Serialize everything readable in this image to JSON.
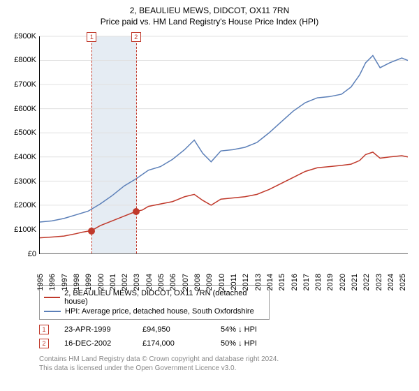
{
  "title_line1": "2, BEAULIEU MEWS, DIDCOT, OX11 7RN",
  "title_line2": "Price paid vs. HM Land Registry's House Price Index (HPI)",
  "chart": {
    "type": "line",
    "x_start_year": 1995,
    "x_end_year": 2025.5,
    "x_ticks": [
      1995,
      1996,
      1997,
      1998,
      1999,
      2000,
      2001,
      2002,
      2003,
      2004,
      2005,
      2006,
      2007,
      2008,
      2009,
      2010,
      2011,
      2012,
      2013,
      2014,
      2015,
      2016,
      2017,
      2018,
      2019,
      2020,
      2021,
      2022,
      2023,
      2024,
      2025
    ],
    "y_min": 0,
    "y_max": 900000,
    "y_step": 100000,
    "y_prefix": "£",
    "y_suffix": "K",
    "y_divisor": 1000,
    "y_ticks": [
      0,
      100000,
      200000,
      300000,
      400000,
      500000,
      600000,
      700000,
      800000,
      900000
    ],
    "grid_color": "#e0e0e0",
    "background_color": "#ffffff",
    "colors": {
      "property": "#c0392b",
      "hpi": "#5b7fb8"
    },
    "series": {
      "property": [
        [
          1995.0,
          65000
        ],
        [
          1996.0,
          68000
        ],
        [
          1997.0,
          72000
        ],
        [
          1998.0,
          82000
        ],
        [
          1998.5,
          88000
        ],
        [
          1999.3,
          94950
        ],
        [
          2000.0,
          115000
        ],
        [
          2001.0,
          135000
        ],
        [
          2002.0,
          155000
        ],
        [
          2002.96,
          174000
        ],
        [
          2003.5,
          180000
        ],
        [
          2004.0,
          195000
        ],
        [
          2005.0,
          205000
        ],
        [
          2006.0,
          215000
        ],
        [
          2007.0,
          235000
        ],
        [
          2007.8,
          245000
        ],
        [
          2008.5,
          220000
        ],
        [
          2009.2,
          200000
        ],
        [
          2010.0,
          225000
        ],
        [
          2011.0,
          230000
        ],
        [
          2012.0,
          235000
        ],
        [
          2013.0,
          245000
        ],
        [
          2014.0,
          265000
        ],
        [
          2015.0,
          290000
        ],
        [
          2016.0,
          315000
        ],
        [
          2017.0,
          340000
        ],
        [
          2018.0,
          355000
        ],
        [
          2019.0,
          360000
        ],
        [
          2020.0,
          365000
        ],
        [
          2020.8,
          370000
        ],
        [
          2021.5,
          385000
        ],
        [
          2022.0,
          410000
        ],
        [
          2022.6,
          420000
        ],
        [
          2023.2,
          395000
        ],
        [
          2024.0,
          400000
        ],
        [
          2025.0,
          405000
        ],
        [
          2025.5,
          400000
        ]
      ],
      "hpi": [
        [
          1995.0,
          130000
        ],
        [
          1996.0,
          135000
        ],
        [
          1997.0,
          145000
        ],
        [
          1998.0,
          160000
        ],
        [
          1999.0,
          175000
        ],
        [
          2000.0,
          205000
        ],
        [
          2001.0,
          240000
        ],
        [
          2002.0,
          280000
        ],
        [
          2003.0,
          310000
        ],
        [
          2004.0,
          345000
        ],
        [
          2005.0,
          360000
        ],
        [
          2006.0,
          390000
        ],
        [
          2007.0,
          430000
        ],
        [
          2007.8,
          470000
        ],
        [
          2008.5,
          415000
        ],
        [
          2009.2,
          380000
        ],
        [
          2010.0,
          425000
        ],
        [
          2011.0,
          430000
        ],
        [
          2012.0,
          440000
        ],
        [
          2013.0,
          460000
        ],
        [
          2014.0,
          500000
        ],
        [
          2015.0,
          545000
        ],
        [
          2016.0,
          590000
        ],
        [
          2017.0,
          625000
        ],
        [
          2018.0,
          645000
        ],
        [
          2019.0,
          650000
        ],
        [
          2020.0,
          660000
        ],
        [
          2020.8,
          690000
        ],
        [
          2021.5,
          740000
        ],
        [
          2022.0,
          790000
        ],
        [
          2022.6,
          820000
        ],
        [
          2023.2,
          770000
        ],
        [
          2024.0,
          790000
        ],
        [
          2025.0,
          810000
        ],
        [
          2025.5,
          800000
        ]
      ]
    },
    "sales_band": {
      "from_year": 1999.3,
      "to_year": 2002.96,
      "fill": "#c7d4e3"
    },
    "sale_markers": [
      {
        "label": "1",
        "year": 1999.3,
        "price": 94950
      },
      {
        "label": "2",
        "year": 2002.96,
        "price": 174000
      }
    ],
    "line_width": 1.5,
    "dot_radius": 5
  },
  "legend": {
    "property_label": "2, BEAULIEU MEWS, DIDCOT, OX11 7RN (detached house)",
    "hpi_label": "HPI: Average price, detached house, South Oxfordshire"
  },
  "sales_table": [
    {
      "marker": "1",
      "date": "23-APR-1999",
      "price": "£94,950",
      "relation": "54% ↓ HPI"
    },
    {
      "marker": "2",
      "date": "16-DEC-2002",
      "price": "£174,000",
      "relation": "50% ↓ HPI"
    }
  ],
  "footer": {
    "line1": "Contains HM Land Registry data © Crown copyright and database right 2024.",
    "line2": "This data is licensed under the Open Government Licence v3.0."
  }
}
